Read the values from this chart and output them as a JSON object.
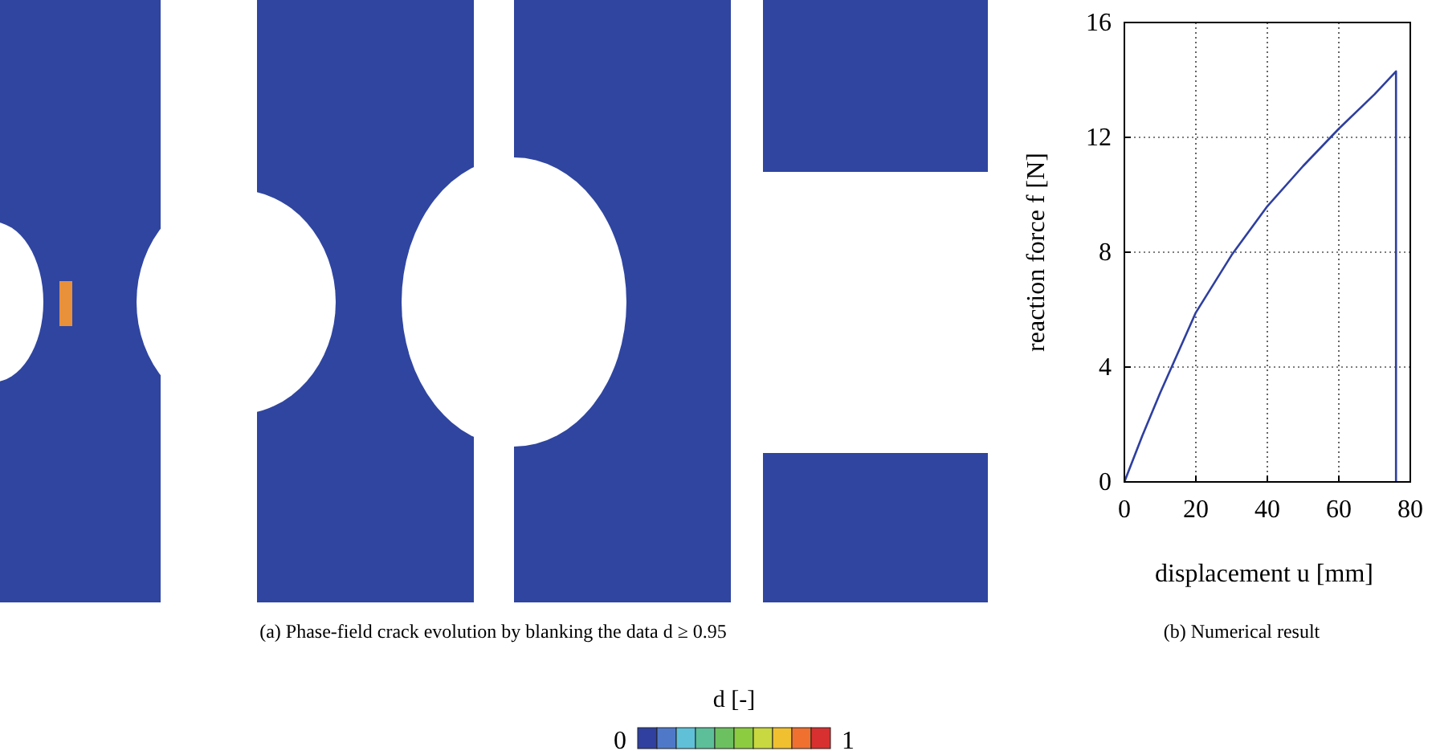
{
  "chart_data": [
    {
      "type": "other",
      "annotations": [
        "(a) Phase-field crack evolution by blanking the data d ≥ 0.95",
        "d [-]",
        "0",
        "1"
      ]
    },
    {
      "type": "line",
      "xlabel": "displacement u [mm]",
      "ylabel": "reaction force f [N]",
      "annotations": [
        "(b) Numerical result"
      ],
      "x": [
        0,
        5,
        10,
        20,
        30,
        40,
        50,
        60,
        70,
        76,
        76
      ],
      "series": [
        {
          "color": "#2e3fa0",
          "values": [
            0,
            1.6,
            3.1,
            5.9,
            7.9,
            9.6,
            11.0,
            12.3,
            13.5,
            14.3,
            0
          ]
        }
      ],
      "xlim": [
        0,
        80
      ],
      "xticks": [
        0,
        20,
        40,
        60,
        80
      ],
      "ylim": [
        0,
        16
      ],
      "yticks": [
        0,
        4,
        8,
        12,
        16
      ],
      "grid": true,
      "marker": "none",
      "line_style": "solid"
    }
  ]
}
